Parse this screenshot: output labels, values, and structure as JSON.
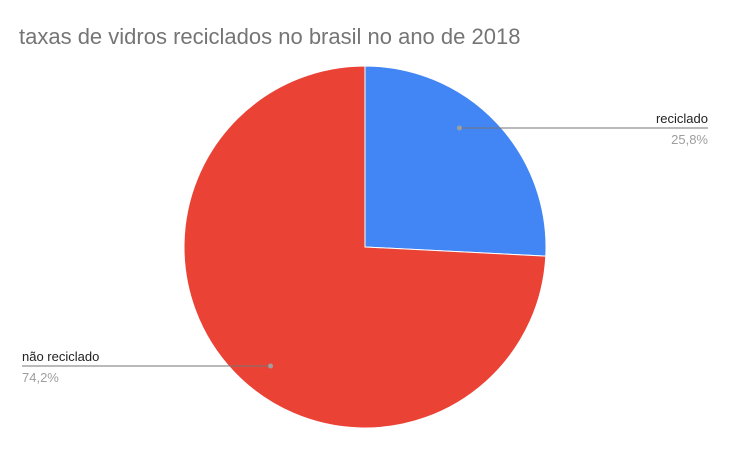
{
  "chart_data": {
    "type": "pie",
    "title": "taxas de vidros reciclados no brasil no ano de 2018",
    "slices": [
      {
        "label": "reciclado",
        "value": 25.8,
        "value_label": "25,8%",
        "color": "#4285f4"
      },
      {
        "label": "não reciclado",
        "value": 74.2,
        "value_label": "74,2%",
        "color": "#ea4335"
      }
    ],
    "legend": "none",
    "label_style": "callout"
  }
}
